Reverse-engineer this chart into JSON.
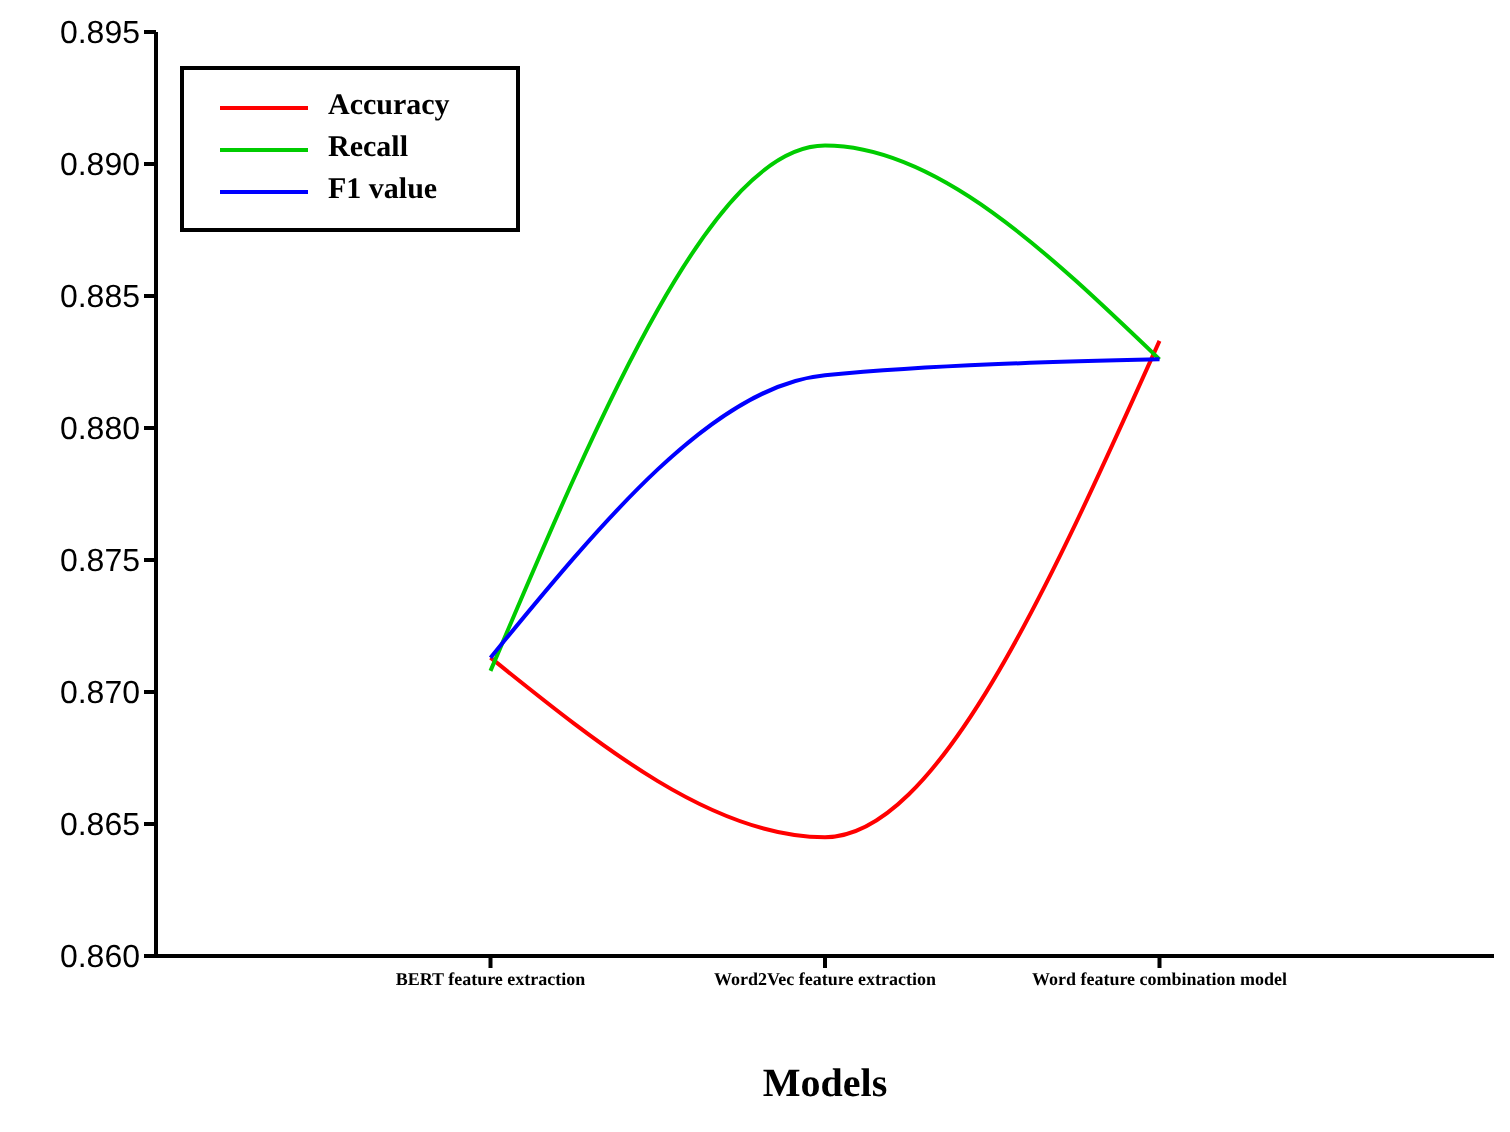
{
  "chart_data": {
    "type": "line",
    "xlabel": "Models",
    "categories": [
      "BERT feature extraction",
      "Word2Vec feature extraction",
      "Word feature combination model"
    ],
    "series": [
      {
        "name": "Accuracy",
        "color": "#ff0000",
        "values": [
          0.8713,
          0.8645,
          0.8833
        ]
      },
      {
        "name": "Recall",
        "color": "#00cc00",
        "values": [
          0.8708,
          0.8907,
          0.8826
        ]
      },
      {
        "name": "F1 value",
        "color": "#0000ff",
        "values": [
          0.8713,
          0.882,
          0.8826
        ]
      }
    ],
    "ylim": [
      0.86,
      0.895
    ],
    "yticks": [
      {
        "value": 0.86,
        "label": "0.860"
      },
      0.865,
      {
        "value": 0.87,
        "label": "0.870"
      },
      0.875,
      {
        "value": 0.88,
        "label": "0.880"
      },
      0.885,
      {
        "value": 0.89,
        "label": "0.890"
      },
      0.895
    ],
    "legend": "top left",
    "marker": "none",
    "line_style": "solid"
  }
}
